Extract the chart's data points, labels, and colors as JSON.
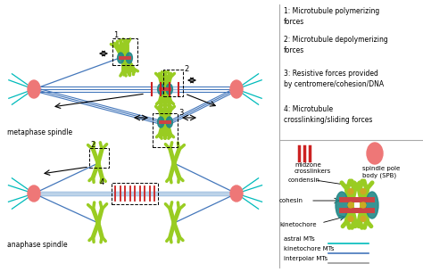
{
  "bg_color": "#ffffff",
  "legend_texts": [
    "1: Microtubule polymerizing\nforces",
    "2: Microtubule depolymerizing\nforces",
    "3: Resistive forces provided\nby centromere/cohesion/DNA",
    "4: Microtubule\ncrosslinking/sliding forces"
  ],
  "midzone_label": "midzone\ncrosslinkers",
  "spb_label": "spindle pole\nbody (SPB)",
  "condensin_label": "condensin",
  "cohesin_label": "cohesin",
  "kinetochore_label": "kinetochore",
  "astral_label": "astral MTs",
  "kmt_label": "kinetochore MTs",
  "ipmt_label": "interpolar MTs",
  "metaphase_label": "metaphase spindle",
  "anaphase_label": "anaphase spindle",
  "spindle_blue": "#4477bb",
  "astral_teal": "#00bbbb",
  "chromosome_green": "#99cc22",
  "spb_pink": "#ee7777",
  "cohesin_pink": "#cc4444",
  "kinetochore_teal": "#228888",
  "condensin_yellow": "#ccaa22",
  "midzone_red": "#cc2222",
  "interpolar_blue": "#99bbdd",
  "font_size": 5.5
}
